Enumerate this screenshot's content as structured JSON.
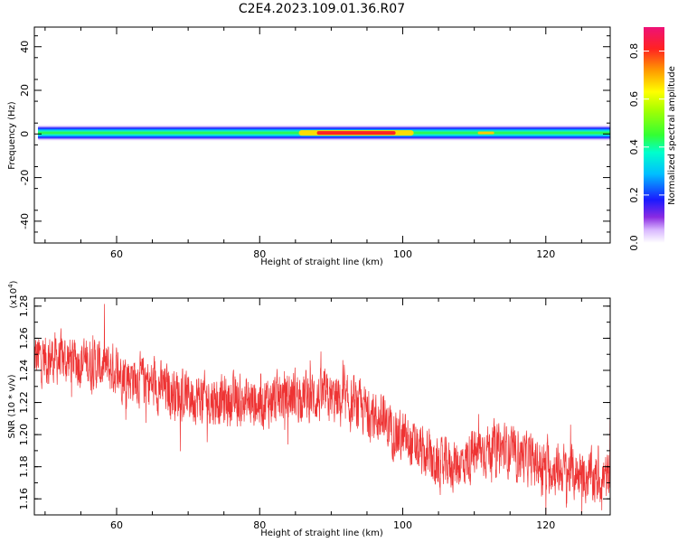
{
  "title": "C2E4.2023.109.01.36.R07",
  "chart_data": [
    {
      "type": "heatmap",
      "xlabel": "Height of straight line (km)",
      "ylabel": "Frequency (Hz)",
      "xlim": [
        48.5,
        129
      ],
      "ylim": [
        -50,
        49
      ],
      "xticks": [
        60,
        80,
        100,
        120
      ],
      "yticks": [
        -40,
        -20,
        0,
        20,
        40
      ],
      "band_center_hz": 0.5,
      "band_halfwidth_hz": 4,
      "hotspot_x_km": [
        88,
        99
      ],
      "colorbar": {
        "label": "Normalized spectral amplitude",
        "ticks": [
          "0.0",
          "0.2",
          "0.4",
          "0.6",
          "0.8"
        ],
        "range": [
          0,
          0.9
        ]
      }
    },
    {
      "type": "line",
      "xlabel": "Height of straight line (km)",
      "ylabel": "SNR (10 * v/v)",
      "y_multiplier": "(x10",
      "y_multiplier_exp": "4",
      "y_multiplier_close": ")",
      "xlim": [
        48.5,
        129
      ],
      "ylim": [
        1.15,
        1.285
      ],
      "xticks": [
        60,
        80,
        100,
        120
      ],
      "yticks": [
        "1.16",
        "1.18",
        "1.20",
        "1.22",
        "1.24",
        "1.26",
        "1.28"
      ],
      "color": "#ee3333",
      "trend_knots": [
        [
          48.5,
          1.248
        ],
        [
          55,
          1.246
        ],
        [
          60,
          1.24
        ],
        [
          65,
          1.231
        ],
        [
          70,
          1.224
        ],
        [
          75,
          1.221
        ],
        [
          80,
          1.22
        ],
        [
          85,
          1.225
        ],
        [
          90,
          1.222
        ],
        [
          95,
          1.215
        ],
        [
          98,
          1.205
        ],
        [
          102,
          1.19
        ],
        [
          105,
          1.18
        ],
        [
          108,
          1.182
        ],
        [
          112,
          1.192
        ],
        [
          115,
          1.19
        ],
        [
          120,
          1.18
        ],
        [
          125,
          1.175
        ],
        [
          129,
          1.172
        ]
      ]
    }
  ]
}
